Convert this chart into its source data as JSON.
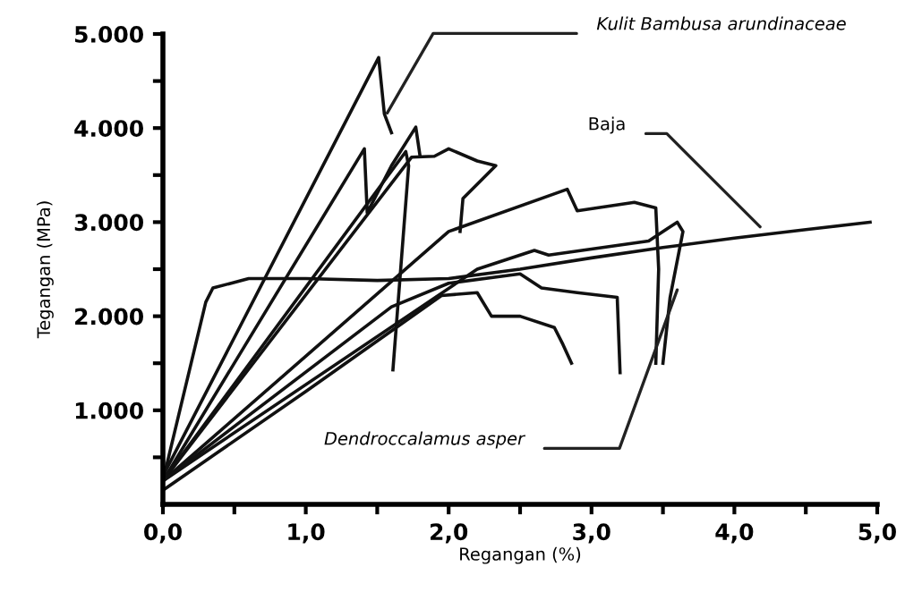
{
  "chart_data": {
    "type": "line",
    "xlabel": "Regangan (%)",
    "ylabel": "Tegangan (MPa)",
    "xlim": [
      0,
      5
    ],
    "ylim": [
      0,
      5000
    ],
    "xticks": [
      {
        "value": 0,
        "label": "0,0"
      },
      {
        "value": 0.5,
        "label": null
      },
      {
        "value": 1,
        "label": "1,0"
      },
      {
        "value": 1.5,
        "label": null
      },
      {
        "value": 2,
        "label": "2,0"
      },
      {
        "value": 2.5,
        "label": null
      },
      {
        "value": 3,
        "label": "3,0"
      },
      {
        "value": 3.5,
        "label": null
      },
      {
        "value": 4,
        "label": "4,0"
      },
      {
        "value": 4.5,
        "label": null
      },
      {
        "value": 5,
        "label": "5,0"
      }
    ],
    "yticks": [
      {
        "value": 500,
        "label": null
      },
      {
        "value": 1000,
        "label": "1.000"
      },
      {
        "value": 1500,
        "label": null
      },
      {
        "value": 2000,
        "label": "2.000"
      },
      {
        "value": 2500,
        "label": null
      },
      {
        "value": 3000,
        "label": "3.000"
      },
      {
        "value": 3500,
        "label": null
      },
      {
        "value": 4000,
        "label": "4.000"
      },
      {
        "value": 4500,
        "label": null
      },
      {
        "value": 5000,
        "label": "5.000"
      }
    ],
    "grid": false,
    "legend": false,
    "series": [
      {
        "color": "#111111",
        "x": [
          0,
          0.3,
          0.35,
          0.6,
          1.0,
          1.5,
          2.0,
          2.5,
          3.0,
          3.5,
          4.0,
          4.5,
          4.95
        ],
        "values": [
          250,
          2150,
          2300,
          2400,
          2400,
          2380,
          2400,
          2500,
          2620,
          2730,
          2830,
          2920,
          3000
        ]
      },
      {
        "color": "#111111",
        "x": [
          0,
          1.51,
          1.55,
          1.6
        ],
        "values": [
          300,
          4750,
          4150,
          3950
        ]
      },
      {
        "color": "#111111",
        "x": [
          0,
          1.41,
          1.43,
          1.6,
          1.77,
          1.8
        ],
        "values": [
          250,
          3780,
          3100,
          3600,
          4010,
          3700
        ]
      },
      {
        "color": "#111111",
        "x": [
          0,
          1.7,
          1.72,
          1.61
        ],
        "values": [
          250,
          3750,
          3600,
          1430
        ]
      },
      {
        "color": "#111111",
        "x": [
          0,
          1.74,
          1.9,
          2.0,
          2.2,
          2.33,
          2.1,
          2.08
        ],
        "values": [
          250,
          3690,
          3700,
          3780,
          3650,
          3600,
          3250,
          2900
        ]
      },
      {
        "color": "#111111",
        "x": [
          0,
          2.0,
          2.83,
          2.9,
          3.3,
          3.45,
          3.47,
          3.45
        ],
        "values": [
          250,
          2900,
          3350,
          3120,
          3210,
          3150,
          2500,
          1500
        ]
      },
      {
        "color": "#111111",
        "x": [
          0,
          2.2,
          2.6,
          2.7,
          3.4,
          3.6,
          3.64,
          3.55,
          3.5
        ],
        "values": [
          250,
          2500,
          2700,
          2650,
          2800,
          3000,
          2900,
          2200,
          1500
        ]
      },
      {
        "color": "#111111",
        "x": [
          0,
          1.0,
          1.95,
          2.2,
          2.3,
          2.5,
          2.74,
          2.8,
          2.86
        ],
        "values": [
          150,
          1200,
          2220,
          2250,
          2000,
          2000,
          1880,
          1700,
          1500
        ]
      },
      {
        "color": "#111111",
        "x": [
          0,
          1.6,
          2.0,
          2.5,
          2.65,
          2.9,
          3.18,
          3.2
        ],
        "values": [
          250,
          2100,
          2350,
          2450,
          2300,
          2250,
          2200,
          1400
        ]
      }
    ],
    "annotations": [
      {
        "text": "Kulit Bambusa arundinaceae",
        "x": 1.57,
        "y": 4160
      },
      {
        "text": "Baja",
        "x": 4.18,
        "y": 2950
      },
      {
        "text": "Dendroccalamus asper",
        "x": 3.6,
        "y": 2280
      }
    ]
  }
}
